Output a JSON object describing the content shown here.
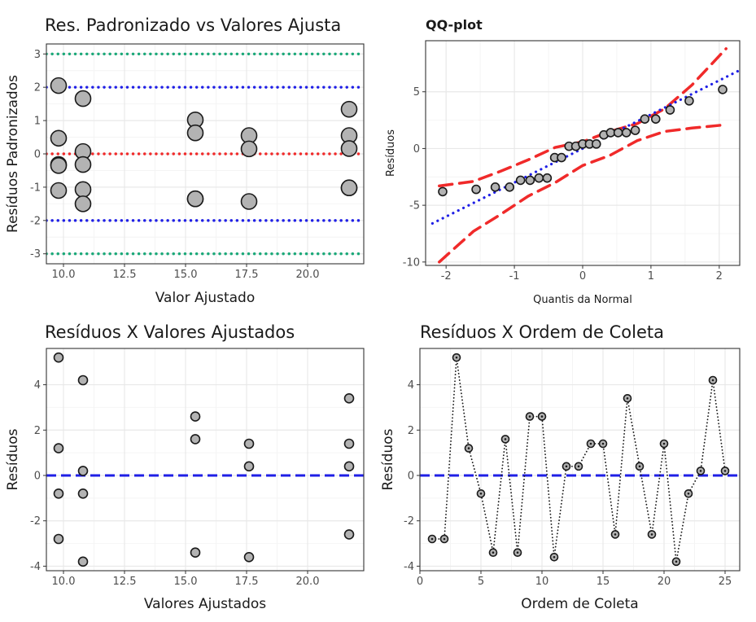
{
  "colors": {
    "green": "#1aa878",
    "blue": "#1f1fe6",
    "red": "#f02a2a",
    "point_fill": "#b3b3b3",
    "point_stroke": "#1a1a1a",
    "grid_major": "#e8e8e8",
    "grid_minor": "#f4f4f4",
    "panel_border": "#333333"
  },
  "chart_data": [
    {
      "id": "std",
      "type": "scatter",
      "title": "Res. Padronizado vs Valores Ajusta",
      "xlabel": "Valor Ajustado",
      "ylabel": "Resíduos Padronizados",
      "xlim": [
        9.3,
        22.3
      ],
      "ylim": [
        -3.3,
        3.3
      ],
      "xticks": [
        10,
        12.5,
        15,
        17.5,
        20
      ],
      "xtick_labels": [
        "10.0",
        "12.5",
        "15.0",
        "17.5",
        "20.0"
      ],
      "yticks": [
        -3,
        -2,
        -1,
        0,
        1,
        2,
        3
      ],
      "ytick_labels": [
        "-3",
        "-2",
        "-1",
        "0",
        "1",
        "2",
        "3"
      ],
      "hlines": [
        {
          "y": 3,
          "color": "green",
          "style": "dotted"
        },
        {
          "y": 2,
          "color": "blue",
          "style": "dotted"
        },
        {
          "y": 0,
          "color": "red",
          "style": "dotted"
        },
        {
          "y": -2,
          "color": "blue",
          "style": "dotted"
        },
        {
          "y": -3,
          "color": "green",
          "style": "dotted"
        }
      ],
      "x": [
        9.8,
        9.8,
        9.8,
        9.8,
        9.8,
        10.8,
        10.8,
        10.8,
        10.8,
        10.8,
        15.4,
        15.4,
        15.4,
        15.4,
        17.6,
        17.6,
        17.6,
        21.7,
        21.7,
        21.7,
        21.7,
        21.7
      ],
      "y": [
        2.05,
        0.47,
        -0.32,
        -0.35,
        -1.1,
        1.66,
        0.07,
        -0.32,
        -1.07,
        -1.5,
        1.02,
        0.63,
        -1.35,
        -1.35,
        0.55,
        0.15,
        -1.43,
        1.34,
        0.55,
        0.16,
        -1.02,
        -1.02
      ]
    },
    {
      "id": "qq",
      "type": "scatter",
      "title": "QQ-plot",
      "xlabel": "Quantis da Normal",
      "ylabel": "Resíduos",
      "xlim": [
        -2.3,
        2.3
      ],
      "ylim": [
        -10.3,
        9.5
      ],
      "xticks": [
        -2,
        -1,
        0,
        1,
        2
      ],
      "xtick_labels": [
        "-2",
        "-1",
        "0",
        "1",
        "2"
      ],
      "yticks": [
        -10,
        -5,
        0,
        5
      ],
      "ytick_labels": [
        "-10",
        "-5",
        "0",
        "5"
      ],
      "reference_line": {
        "intercept": 0,
        "slope": 3.0
      },
      "band_upper_x": [
        -2.1,
        -1.6,
        -1.2,
        -0.8,
        -0.4,
        0.0,
        0.4,
        0.8,
        1.2,
        1.6,
        2.1
      ],
      "band_upper_y": [
        -3.3,
        -2.9,
        -2.0,
        -1.0,
        0.1,
        0.6,
        1.5,
        2.2,
        3.5,
        5.6,
        8.8
      ],
      "band_lower_x": [
        -2.1,
        -1.6,
        -1.2,
        -0.8,
        -0.4,
        0.0,
        0.4,
        0.8,
        1.2,
        1.6,
        2.1
      ],
      "band_lower_y": [
        -10.0,
        -7.3,
        -5.8,
        -4.2,
        -3.0,
        -1.5,
        -0.6,
        0.7,
        1.5,
        1.8,
        2.1
      ],
      "x": [
        -2.05,
        -1.56,
        -1.28,
        -1.07,
        -0.91,
        -0.77,
        -0.64,
        -0.52,
        -0.41,
        -0.31,
        -0.2,
        -0.1,
        0.0,
        0.1,
        0.2,
        0.31,
        0.41,
        0.52,
        0.64,
        0.77,
        0.91,
        1.07,
        1.28,
        1.56,
        2.05
      ],
      "y": [
        -3.8,
        -3.6,
        -3.4,
        -3.4,
        -2.8,
        -2.8,
        -2.6,
        -2.6,
        -0.8,
        -0.8,
        0.2,
        0.2,
        0.4,
        0.4,
        0.4,
        1.2,
        1.4,
        1.4,
        1.4,
        1.6,
        2.6,
        2.6,
        3.4,
        4.2,
        5.2
      ]
    },
    {
      "id": "resfit",
      "type": "scatter",
      "title": "Resíduos X Valores Ajustados",
      "xlabel": "Valores Ajustados",
      "ylabel": "Resíduos",
      "xlim": [
        9.3,
        22.3
      ],
      "ylim": [
        -4.2,
        5.6
      ],
      "xticks": [
        10,
        12.5,
        15,
        17.5,
        20
      ],
      "xtick_labels": [
        "10.0",
        "12.5",
        "15.0",
        "17.5",
        "20.0"
      ],
      "yticks": [
        -4,
        -2,
        0,
        2,
        4
      ],
      "ytick_labels": [
        "-4",
        "-2",
        "0",
        "2",
        "4"
      ],
      "hlines": [
        {
          "y": 0,
          "color": "blue",
          "style": "dashed"
        }
      ],
      "x": [
        9.8,
        9.8,
        9.8,
        9.8,
        10.8,
        10.8,
        10.8,
        10.8,
        15.4,
        15.4,
        15.4,
        17.6,
        17.6,
        17.6,
        21.7,
        21.7,
        21.7,
        21.7
      ],
      "y": [
        5.2,
        1.2,
        -0.8,
        -2.8,
        4.2,
        0.2,
        -0.8,
        -3.8,
        2.6,
        1.6,
        -3.4,
        1.4,
        0.4,
        -3.6,
        3.4,
        1.4,
        0.4,
        -2.6
      ]
    },
    {
      "id": "order",
      "type": "line",
      "title": "Resíduos X Ordem de Coleta",
      "xlabel": "Ordem de Coleta",
      "ylabel": "Resíduos",
      "xlim": [
        0,
        26.2
      ],
      "ylim": [
        -4.2,
        5.6
      ],
      "xticks": [
        0,
        5,
        10,
        15,
        20,
        25
      ],
      "xtick_labels": [
        "0",
        "5",
        "10",
        "15",
        "20",
        "25"
      ],
      "yticks": [
        -4,
        -2,
        0,
        2,
        4
      ],
      "ytick_labels": [
        "-4",
        "-2",
        "0",
        "2",
        "4"
      ],
      "hlines": [
        {
          "y": 0,
          "color": "blue",
          "style": "dashed"
        }
      ],
      "x": [
        1,
        2,
        3,
        4,
        5,
        6,
        7,
        8,
        9,
        10,
        11,
        12,
        13,
        14,
        15,
        16,
        17,
        18,
        19,
        20,
        21,
        22,
        23,
        24,
        25
      ],
      "y": [
        -2.8,
        -2.8,
        5.2,
        1.2,
        -0.8,
        -3.4,
        1.6,
        -3.4,
        2.6,
        2.6,
        -3.6,
        0.4,
        0.4,
        1.4,
        1.4,
        -2.6,
        3.4,
        0.4,
        -2.6,
        1.4,
        -3.8,
        -0.8,
        0.2,
        4.2,
        0.2
      ]
    }
  ]
}
